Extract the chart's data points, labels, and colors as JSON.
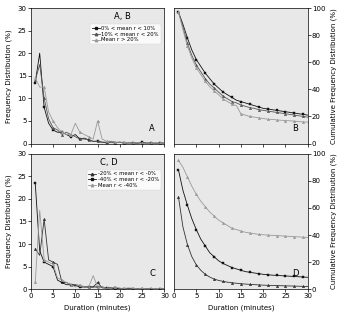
{
  "title_AB": "A, B",
  "title_CD": "C, D",
  "legend_AB": [
    "0% < mean r < 10%",
    "10% < mean r < 20%",
    "Mean r > 20%"
  ],
  "legend_CD": [
    "-20% < mean r < -0%",
    "-40% < mean r < -20%",
    "Mean r < -40%"
  ],
  "xlabel": "Duration (minutes)",
  "ylabel_freq": "Frequency Distribution (%)",
  "ylabel_cum": "Cumulative Frequency Distribution (%)",
  "x_ticks": [
    0,
    5,
    10,
    15,
    20,
    25,
    30
  ],
  "yticks_freq": [
    0,
    5,
    10,
    15,
    20,
    25,
    30
  ],
  "yticks_cum": [
    0,
    20,
    40,
    60,
    80,
    100
  ],
  "ylim_freq": [
    0,
    30
  ],
  "ylim_cum": [
    0,
    100
  ],
  "xlim": [
    0,
    30
  ],
  "colors_AB": [
    "#111111",
    "#555555",
    "#999999"
  ],
  "colors_CD": [
    "#333333",
    "#111111",
    "#999999"
  ],
  "markers_AB": [
    "s",
    "^",
    "^"
  ],
  "markers_CD": [
    "^",
    "s",
    "^"
  ],
  "x": [
    1,
    2,
    3,
    4,
    5,
    6,
    7,
    8,
    9,
    10,
    11,
    12,
    13,
    14,
    15,
    16,
    17,
    18,
    19,
    20,
    21,
    22,
    23,
    24,
    25,
    26,
    27,
    28,
    29,
    30
  ],
  "A_s1": [
    13.5,
    20.0,
    8.0,
    4.5,
    3.0,
    2.5,
    2.5,
    2.0,
    1.5,
    2.0,
    1.0,
    1.2,
    0.8,
    0.5,
    0.5,
    0.3,
    0.2,
    0.5,
    0.2,
    0.3,
    0.1,
    0.2,
    0.1,
    0.1,
    0.3,
    0.1,
    0.1,
    0.1,
    0.1,
    0.1
  ],
  "A_s2": [
    14.0,
    17.5,
    10.0,
    5.5,
    3.5,
    3.0,
    2.0,
    2.5,
    2.0,
    1.5,
    1.0,
    1.0,
    0.8,
    0.5,
    0.5,
    0.3,
    0.3,
    0.2,
    0.2,
    0.3,
    0.1,
    0.1,
    0.2,
    0.1,
    0.1,
    0.1,
    0.1,
    0.0,
    0.1,
    0.1
  ],
  "A_s3": [
    14.5,
    12.5,
    12.5,
    7.0,
    5.0,
    3.5,
    2.5,
    2.0,
    2.0,
    4.5,
    2.5,
    2.0,
    1.5,
    1.0,
    5.0,
    1.0,
    0.5,
    0.5,
    0.3,
    0.3,
    0.3,
    0.2,
    0.1,
    0.2,
    0.1,
    0.1,
    0.1,
    0.1,
    0.1,
    0.1
  ],
  "B_s1": [
    97,
    88,
    78,
    69,
    62,
    57,
    52,
    48,
    44,
    41,
    38,
    36,
    34,
    32,
    31,
    30,
    29,
    28,
    27,
    26,
    25.5,
    25,
    24.5,
    24,
    23.5,
    23,
    22.5,
    22,
    21.5,
    21
  ],
  "B_s2": [
    97,
    86,
    74,
    65,
    58,
    53,
    48,
    44,
    41,
    38,
    35,
    33,
    31,
    30,
    28.5,
    27.5,
    26.5,
    26,
    25,
    24.5,
    24,
    23.5,
    23,
    22.5,
    22,
    21.5,
    21,
    20.5,
    20,
    19.5
  ],
  "B_s3": [
    97,
    84,
    72,
    63,
    56,
    51,
    46,
    42,
    39,
    36,
    33,
    31,
    29,
    28,
    22,
    21,
    20,
    19.5,
    19,
    18.5,
    18,
    17.8,
    17.5,
    17.2,
    17,
    16.8,
    16.5,
    16.2,
    16,
    15.8
  ],
  "C_s1": [
    9.0,
    7.5,
    15.5,
    6.5,
    6.0,
    5.5,
    1.5,
    1.5,
    1.0,
    1.0,
    0.8,
    0.5,
    0.5,
    0.5,
    1.5,
    0.3,
    0.2,
    0.3,
    0.2,
    0.2,
    0.1,
    0.1,
    0.1,
    0.1,
    0.1,
    0.1,
    0.0,
    0.1,
    0.0,
    0.1
  ],
  "C_s2": [
    23.5,
    8.5,
    6.0,
    5.5,
    5.0,
    2.0,
    1.5,
    1.0,
    1.0,
    0.8,
    0.5,
    0.5,
    0.5,
    0.5,
    0.5,
    0.5,
    0.3,
    0.3,
    0.2,
    0.2,
    0.1,
    0.1,
    0.1,
    0.1,
    0.1,
    0.1,
    0.0,
    0.0,
    0.0,
    0.1
  ],
  "C_s3": [
    1.5,
    17.5,
    6.5,
    6.0,
    5.5,
    2.5,
    2.0,
    1.5,
    1.0,
    0.5,
    1.0,
    0.5,
    0.5,
    3.0,
    0.5,
    0.5,
    0.2,
    0.3,
    0.5,
    0.2,
    0.2,
    0.3,
    0.2,
    0.1,
    0.2,
    0.1,
    0.1,
    0.1,
    0.1,
    0.1
  ],
  "D_s1": [
    68,
    46,
    33,
    24,
    18,
    14,
    11,
    9,
    7.5,
    6.5,
    5.8,
    5.2,
    4.8,
    4.4,
    4.1,
    3.8,
    3.6,
    3.4,
    3.2,
    3.0,
    2.9,
    2.8,
    2.7,
    2.6,
    2.5,
    2.4,
    2.3,
    2.2,
    2.1,
    2.0
  ],
  "D_s2": [
    88,
    73,
    62,
    52,
    44,
    37,
    32,
    27,
    24,
    21,
    19,
    17.5,
    16,
    15,
    14,
    13,
    12.5,
    12,
    11.5,
    11,
    10.7,
    10.4,
    10.2,
    10.0,
    9.8,
    9.6,
    9.4,
    9.2,
    9.0,
    8.8
  ],
  "D_s3": [
    95,
    90,
    83,
    76,
    70,
    65,
    61,
    57,
    54,
    51,
    49,
    47,
    45,
    44,
    43,
    42,
    41.5,
    41,
    40.5,
    40.2,
    40.0,
    39.8,
    39.6,
    39.4,
    39.2,
    39.0,
    38.8,
    38.6,
    38.4,
    38.2
  ],
  "linewidth": 0.6,
  "markersize": 1.8,
  "markevery": 2,
  "fontsize_tick": 5,
  "fontsize_label": 5,
  "fontsize_legend": 3.8,
  "fontsize_panel": 6,
  "fontsize_title": 6
}
